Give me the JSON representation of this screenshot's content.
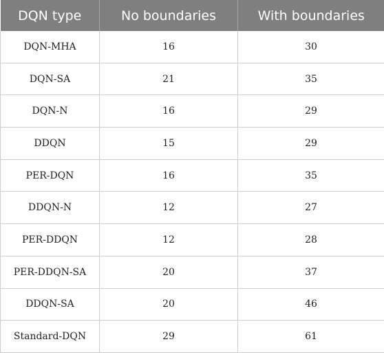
{
  "table": {
    "headers": [
      "DQN type",
      "No boundaries",
      "With boundaries"
    ],
    "rows": [
      [
        "DQN-MHA",
        "16",
        "30"
      ],
      [
        "DQN-SA",
        "21",
        "35"
      ],
      [
        "DQN-N",
        "16",
        "29"
      ],
      [
        "DDQN",
        "15",
        "29"
      ],
      [
        "PER-DQN",
        "16",
        "35"
      ],
      [
        "DDQN-N",
        "12",
        "27"
      ],
      [
        "PER-DDQN",
        "12",
        "28"
      ],
      [
        "PER-DDQN-SA",
        "20",
        "37"
      ],
      [
        "DDQN-SA",
        "20",
        "46"
      ],
      [
        "Standard-DQN",
        "29",
        "61"
      ]
    ]
  }
}
